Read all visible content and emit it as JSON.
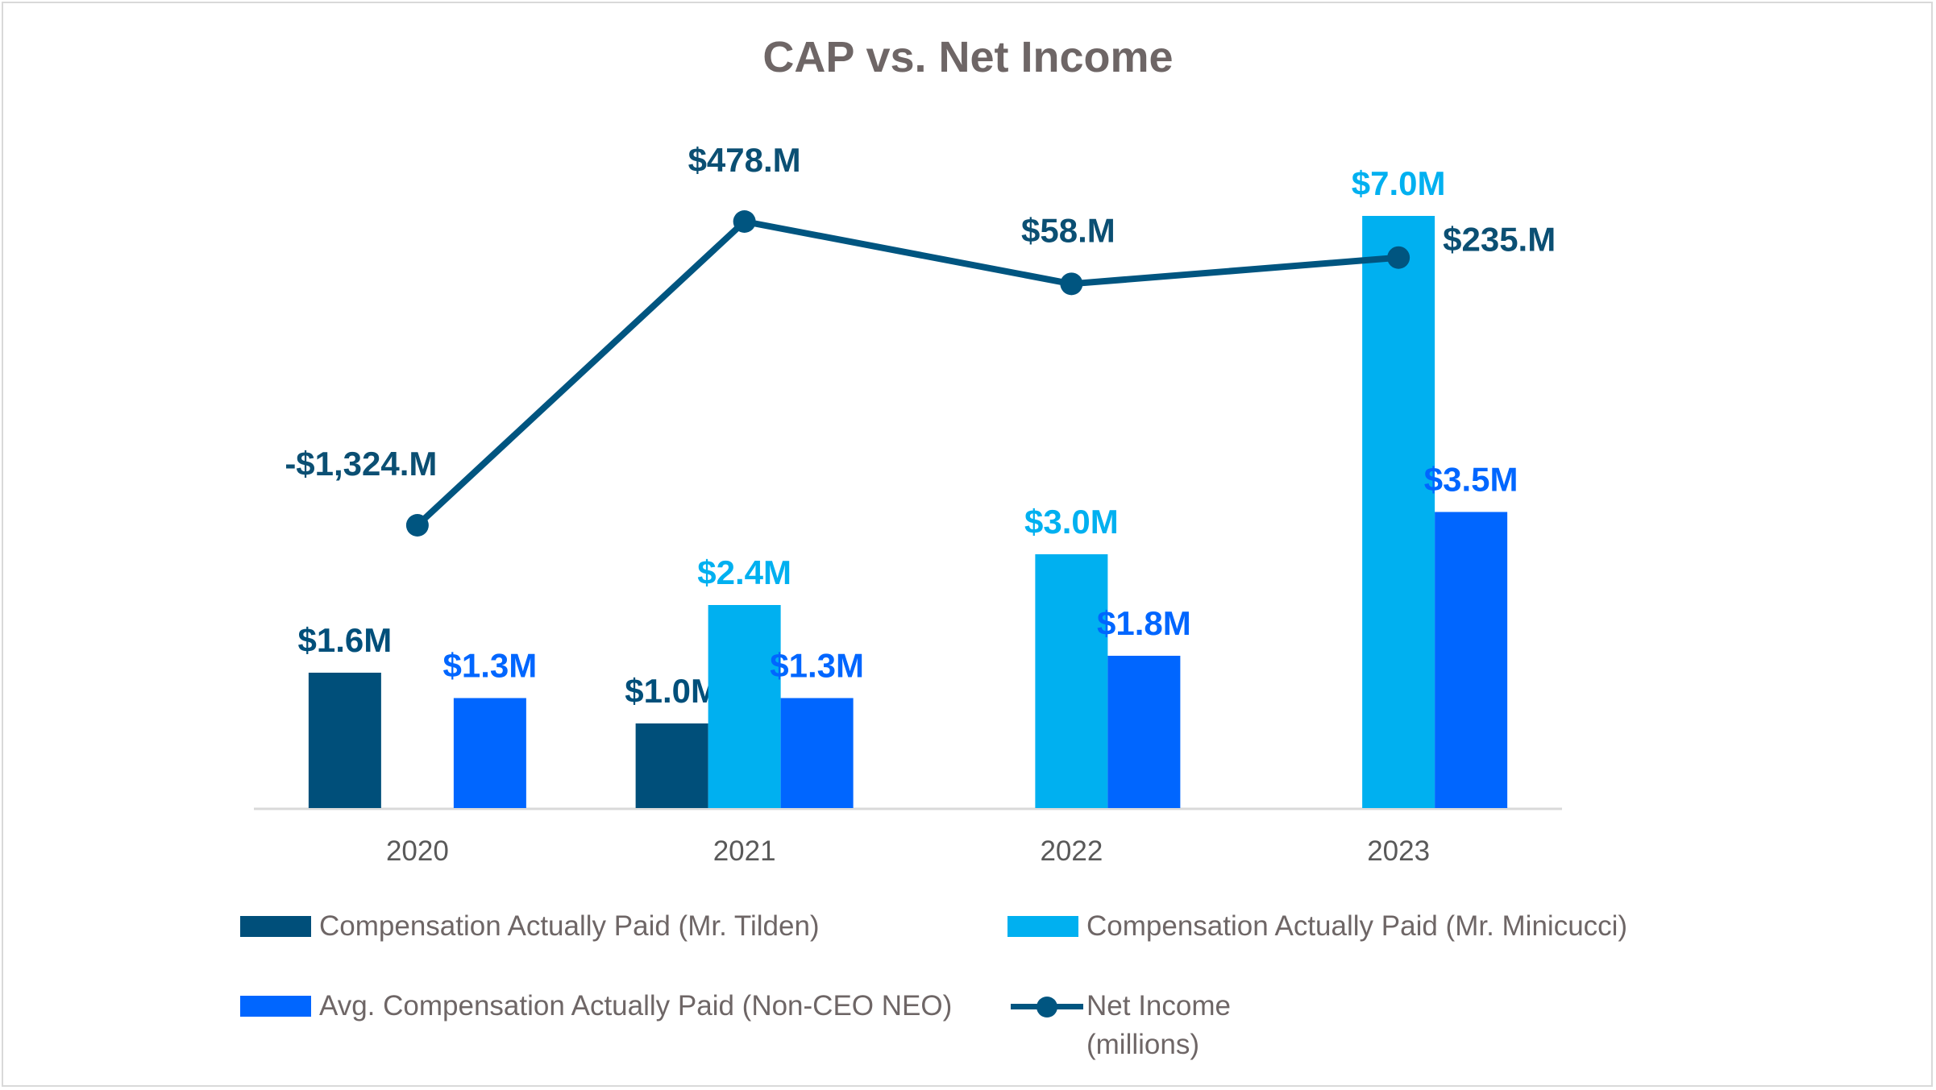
{
  "chart_data": {
    "type": "bar",
    "title": "CAP vs. Net Income",
    "categories": [
      "2020",
      "2021",
      "2022",
      "2023"
    ],
    "series": [
      {
        "name": "Compensation Actually Paid (Mr. Tilden)",
        "color": "#004f7a",
        "values": [
          1.6,
          1.0,
          null,
          null
        ],
        "labels": [
          "$1.6M",
          "$1.0M",
          null,
          null
        ]
      },
      {
        "name": "Compensation Actually Paid (Mr. Minicucci)",
        "color": "#00b0f0",
        "values": [
          null,
          2.4,
          3.0,
          7.0
        ],
        "labels": [
          null,
          "$2.4M",
          "$3.0M",
          "$7.0M"
        ]
      },
      {
        "name": "Avg. Compensation Actually Paid (Non-CEO NEO)",
        "color": "#0066ff",
        "values": [
          1.3,
          1.3,
          1.8,
          3.5
        ],
        "labels": [
          "$1.3M",
          "$1.3M",
          "$1.8M",
          "$3.5M"
        ]
      }
    ],
    "line_series": {
      "name": "Net Income\n(millions)",
      "color": "#005580",
      "axis": "secondary",
      "values": [
        -1324,
        478,
        58,
        235
      ],
      "labels": [
        "-$1,324.M",
        "$478.M",
        "$58.M",
        "$235.M"
      ]
    },
    "ylim": [
      0,
      7.0
    ],
    "y2lim": [
      -2800,
      478
    ],
    "xlabel": "",
    "ylabel": "",
    "legend": "bottom",
    "grid": false
  }
}
